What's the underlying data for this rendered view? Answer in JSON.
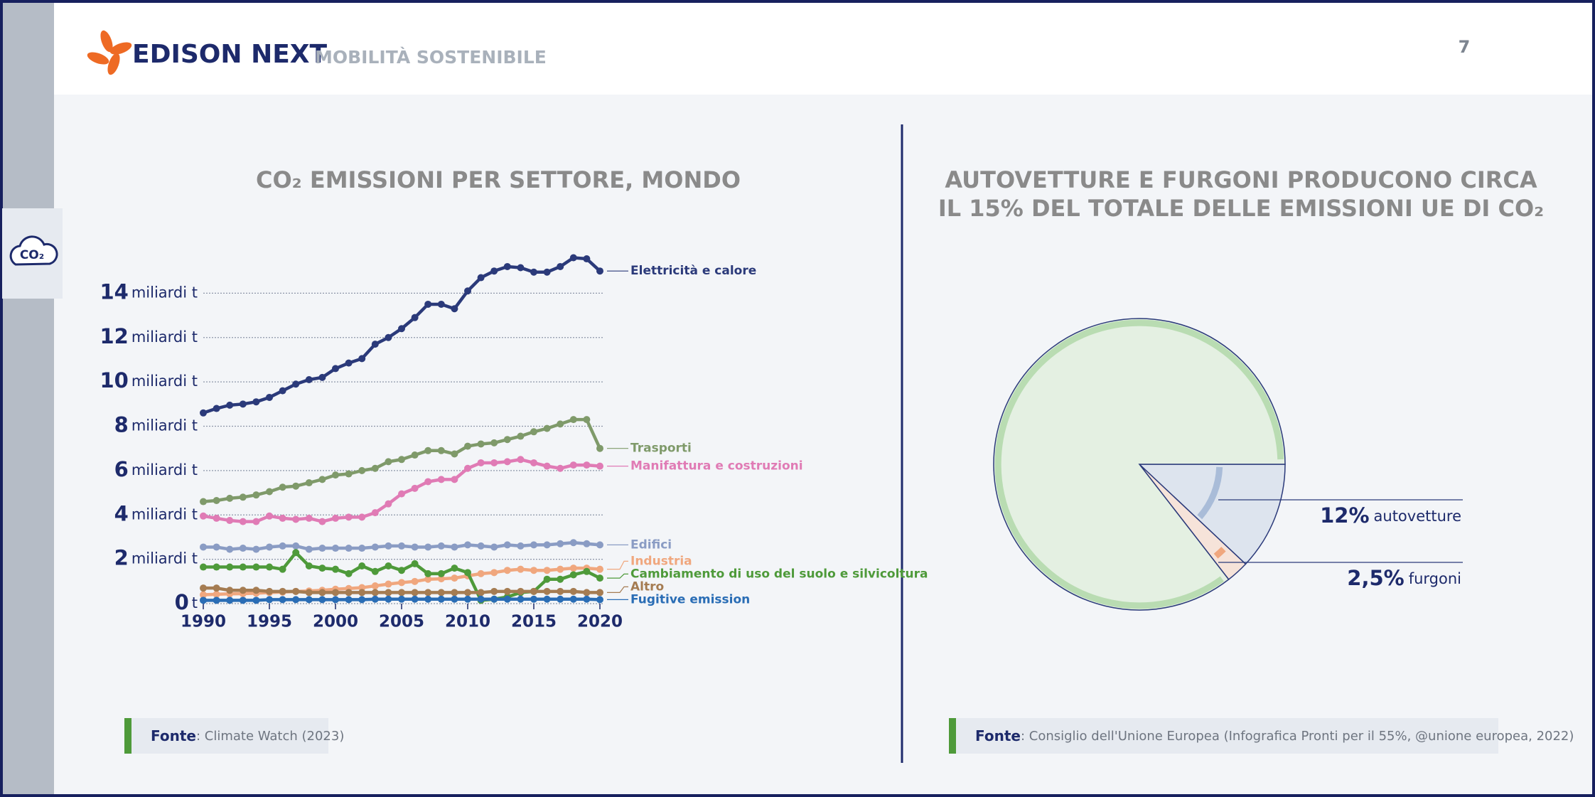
{
  "header": {
    "brand": "EDISON NEXT",
    "section": "MOBILITÀ SOSTENIBILE",
    "page": 7
  },
  "icon": "CO₂",
  "chart_data": [
    {
      "type": "line",
      "title": "CO₂ EMISSIONI PER SETTORE, MONDO",
      "source_label": "Fonte",
      "source": ": Climate Watch (2023)",
      "x": [
        1990,
        1991,
        1992,
        1993,
        1994,
        1995,
        1996,
        1997,
        1998,
        1999,
        2000,
        2001,
        2002,
        2003,
        2004,
        2005,
        2006,
        2007,
        2008,
        2009,
        2010,
        2011,
        2012,
        2013,
        2014,
        2015,
        2016,
        2017,
        2018,
        2019,
        2020
      ],
      "xlim": [
        1990,
        2020
      ],
      "xticks": [
        1990,
        1995,
        2000,
        2005,
        2010,
        2015,
        2020
      ],
      "ylim": [
        0,
        16
      ],
      "yticks": [
        0,
        2,
        4,
        6,
        8,
        10,
        12,
        14
      ],
      "ytick_units": [
        "t",
        "miliardi t",
        "miliardi t",
        "miliardi t",
        "miliardi t",
        "miliardi t",
        "miliardi t",
        "miliardi t"
      ],
      "grid": true,
      "series": [
        {
          "name": "Elettricità e calore",
          "color": "#2b3a7a",
          "values": [
            8.6,
            8.8,
            8.95,
            9.0,
            9.1,
            9.3,
            9.6,
            9.9,
            10.1,
            10.2,
            10.6,
            10.85,
            11.05,
            11.7,
            12.0,
            12.4,
            12.9,
            13.5,
            13.5,
            13.3,
            14.1,
            14.7,
            15.0,
            15.2,
            15.15,
            14.95,
            14.95,
            15.2,
            15.6,
            15.55,
            15.0
          ]
        },
        {
          "name": "Trasporti",
          "color": "#7f9a6a",
          "values": [
            4.6,
            4.65,
            4.75,
            4.8,
            4.9,
            5.05,
            5.25,
            5.3,
            5.45,
            5.6,
            5.8,
            5.85,
            6.0,
            6.1,
            6.4,
            6.5,
            6.7,
            6.9,
            6.9,
            6.75,
            7.1,
            7.2,
            7.25,
            7.4,
            7.55,
            7.75,
            7.9,
            8.1,
            8.3,
            8.3,
            7.0
          ]
        },
        {
          "name": "Manifattura e costruzioni",
          "color": "#e07bb5",
          "values": [
            3.95,
            3.85,
            3.75,
            3.7,
            3.7,
            3.95,
            3.85,
            3.8,
            3.85,
            3.7,
            3.85,
            3.9,
            3.9,
            4.1,
            4.5,
            4.95,
            5.2,
            5.5,
            5.6,
            5.6,
            6.1,
            6.35,
            6.35,
            6.4,
            6.5,
            6.35,
            6.2,
            6.1,
            6.25,
            6.25,
            6.2
          ]
        },
        {
          "name": "Edifici",
          "color": "#8a9cc4",
          "values": [
            2.55,
            2.55,
            2.45,
            2.5,
            2.45,
            2.55,
            2.6,
            2.6,
            2.45,
            2.5,
            2.5,
            2.5,
            2.5,
            2.55,
            2.6,
            2.6,
            2.55,
            2.55,
            2.6,
            2.55,
            2.65,
            2.6,
            2.55,
            2.65,
            2.6,
            2.65,
            2.65,
            2.7,
            2.75,
            2.7,
            2.65
          ]
        },
        {
          "name": "Industria",
          "color": "#f0a77e",
          "values": [
            0.4,
            0.42,
            0.44,
            0.45,
            0.47,
            0.5,
            0.52,
            0.55,
            0.57,
            0.6,
            0.65,
            0.68,
            0.72,
            0.8,
            0.88,
            0.95,
            1.0,
            1.1,
            1.12,
            1.15,
            1.25,
            1.35,
            1.4,
            1.5,
            1.55,
            1.5,
            1.5,
            1.55,
            1.6,
            1.6,
            1.55
          ]
        },
        {
          "name": "Cambiamento di uso del suolo e silvicoltura",
          "color": "#4e9a3a",
          "values": [
            1.65,
            1.65,
            1.65,
            1.65,
            1.65,
            1.65,
            1.55,
            2.3,
            1.7,
            1.6,
            1.55,
            1.35,
            1.7,
            1.45,
            1.7,
            1.5,
            1.8,
            1.35,
            1.35,
            1.6,
            1.4,
            0.15,
            0.2,
            0.3,
            0.5,
            0.55,
            1.1,
            1.1,
            1.3,
            1.45,
            1.15
          ]
        },
        {
          "name": "Altro",
          "color": "#a57c52",
          "values": [
            0.7,
            0.7,
            0.6,
            0.6,
            0.6,
            0.55,
            0.55,
            0.55,
            0.5,
            0.5,
            0.5,
            0.5,
            0.5,
            0.5,
            0.5,
            0.5,
            0.5,
            0.5,
            0.5,
            0.5,
            0.5,
            0.5,
            0.55,
            0.55,
            0.55,
            0.55,
            0.55,
            0.55,
            0.55,
            0.5,
            0.5
          ]
        },
        {
          "name": "Fugitive emission",
          "color": "#2a6db5",
          "values": [
            0.15,
            0.15,
            0.15,
            0.15,
            0.15,
            0.18,
            0.18,
            0.18,
            0.18,
            0.18,
            0.18,
            0.18,
            0.18,
            0.2,
            0.2,
            0.2,
            0.2,
            0.2,
            0.2,
            0.2,
            0.2,
            0.2,
            0.2,
            0.2,
            0.2,
            0.2,
            0.2,
            0.2,
            0.2,
            0.2,
            0.18
          ]
        }
      ]
    },
    {
      "type": "pie",
      "title": [
        "AUTOVETTURE E FURGONI PRODUCONO CIRCA",
        "IL 15% DEL TOTALE DELLE EMISSIONI UE DI CO₂"
      ],
      "source_label": "Fonte",
      "source": ": Consiglio dell'Unione Europea (Infografica Pronti per il 55%, @unione europea, 2022)",
      "categories": [
        "autovetture",
        "furgoni",
        null
      ],
      "values": [
        12,
        2.5,
        85.5
      ],
      "value_labels": [
        "12%",
        "2,5%",
        null
      ],
      "colors": [
        "#dde4ee",
        "#f6e3d9",
        "#e4f0e2"
      ],
      "band_colors": [
        "#a9bcd8",
        "#f0a77e",
        "#b9dcb2"
      ]
    }
  ]
}
